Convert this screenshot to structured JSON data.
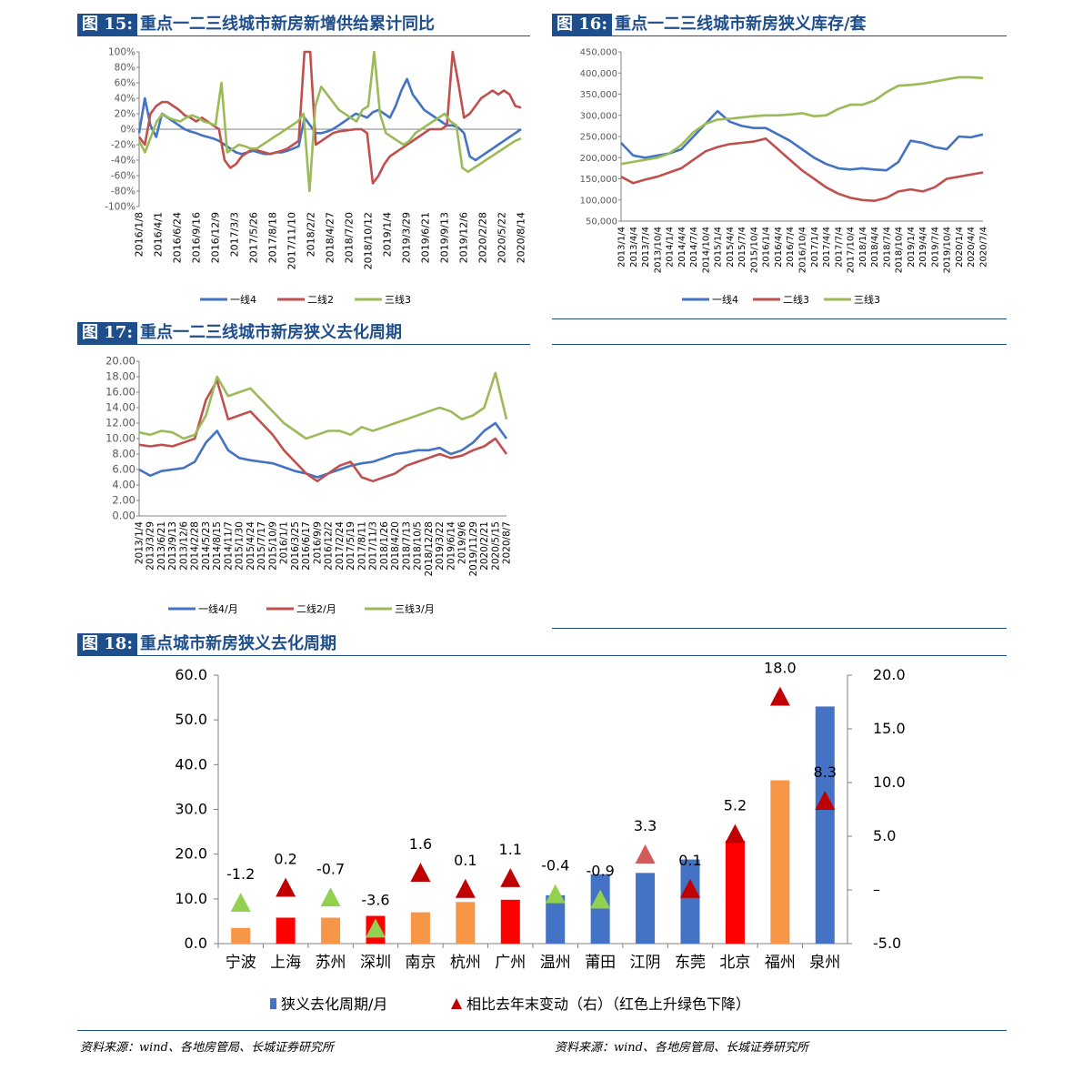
{
  "figures": {
    "f15": {
      "num": "图 15:",
      "title": "重点一二三线城市新房新增供给累计同比"
    },
    "f16": {
      "num": "图 16:",
      "title": "重点一二三线城市新房狭义库存/套"
    },
    "f17": {
      "num": "图 17:",
      "title": "重点一二三线城市新房狭义去化周期"
    },
    "f18": {
      "num": "图 18:",
      "title": "重点城市新房狭义去化周期"
    }
  },
  "sources": {
    "left": "资料来源：wind、各地房管局、长城证券研究所",
    "right": "资料来源：wind、各地房管局、长城证券研究所"
  },
  "colors": {
    "blue": "#4472c4",
    "red": "#c0504d",
    "green": "#9bbb59",
    "orange": "#f79646",
    "brightRed": "#ff0000",
    "navy": "#1f4e8c",
    "triRed": "#c00000",
    "triGreen": "#92d050"
  },
  "chart_data": [
    {
      "id": "f15",
      "type": "line",
      "title": "重点一二三线城市新房新增供给累计同比",
      "ylim": [
        -100,
        100
      ],
      "yticks": [
        "100%",
        "80%",
        "60%",
        "40%",
        "20%",
        "0%",
        "-20%",
        "-40%",
        "-60%",
        "-80%",
        "-100%"
      ],
      "x_labels": [
        "2016/1/8",
        "2016/4/1",
        "2016/6/24",
        "2016/9/16",
        "2016/12/9",
        "2017/3/3",
        "2017/5/26",
        "2017/8/18",
        "2017/11/10",
        "2018/2/2",
        "2018/4/27",
        "2018/7/20",
        "2018/10/12",
        "2019/1/4",
        "2019/3/29",
        "2019/6/21",
        "2019/9/13",
        "2019/12/6",
        "2020/2/28",
        "2020/5/22",
        "2020/8/14"
      ],
      "series": [
        {
          "name": "一线4",
          "color": "#4472c4",
          "values": [
            -5,
            40,
            5,
            -10,
            20,
            15,
            10,
            5,
            0,
            -3,
            -5,
            -8,
            -10,
            -12,
            -15,
            -20,
            -25,
            -30,
            -32,
            -30,
            -28,
            -30,
            -32,
            -32,
            -30,
            -30,
            -28,
            -25,
            -22,
            15,
            5,
            -5,
            -5,
            -3,
            0,
            5,
            10,
            15,
            20,
            18,
            15,
            22,
            25,
            20,
            15,
            30,
            50,
            65,
            45,
            35,
            25,
            20,
            15,
            10,
            5,
            5,
            2,
            -5,
            -35,
            -40,
            -35,
            -30,
            -25,
            -20,
            -15,
            -10,
            -5,
            0
          ]
        },
        {
          "name": "二线2",
          "color": "#c0504d",
          "values": [
            -10,
            -20,
            20,
            30,
            35,
            35,
            30,
            25,
            18,
            15,
            10,
            15,
            10,
            5,
            0,
            -40,
            -50,
            -45,
            -35,
            -30,
            -25,
            -28,
            -30,
            -32,
            -30,
            -28,
            -25,
            -20,
            -15,
            100,
            100,
            -20,
            -15,
            -10,
            -5,
            -3,
            -2,
            -1,
            0,
            0,
            -5,
            -70,
            -60,
            -45,
            -35,
            -30,
            -25,
            -20,
            -15,
            -10,
            -5,
            0,
            0,
            0,
            5,
            100,
            60,
            15,
            20,
            30,
            40,
            45,
            50,
            45,
            50,
            45,
            30,
            28
          ]
        },
        {
          "name": "三线3",
          "color": "#9bbb59",
          "values": [
            -15,
            -30,
            -10,
            10,
            20,
            15,
            12,
            10,
            15,
            18,
            15,
            10,
            8,
            5,
            60,
            -30,
            -25,
            -20,
            -22,
            -25,
            -25,
            -20,
            -15,
            -10,
            -5,
            0,
            5,
            10,
            20,
            -80,
            30,
            55,
            45,
            35,
            25,
            20,
            15,
            10,
            25,
            30,
            100,
            20,
            -5,
            -10,
            -15,
            -20,
            -15,
            -5,
            0,
            5,
            10,
            15,
            20,
            10,
            5,
            -50,
            -55,
            -50,
            -45,
            -40,
            -35,
            -30,
            -25,
            -20,
            -15,
            -12
          ]
        }
      ]
    },
    {
      "id": "f16",
      "type": "line",
      "title": "重点一二三线城市新房狭义库存/套",
      "ylim": [
        50000,
        450000
      ],
      "yticks": [
        "450,000",
        "400,000",
        "350,000",
        "300,000",
        "250,000",
        "200,000",
        "150,000",
        "100,000",
        "50,000"
      ],
      "x_labels": [
        "2013/1/4",
        "2013/4/4",
        "2013/7/4",
        "2013/10/4",
        "2014/1/4",
        "2014/4/4",
        "2014/7/4",
        "2014/10/4",
        "2015/1/4",
        "2015/4/4",
        "2015/7/4",
        "2015/10/4",
        "2016/1/4",
        "2016/4/4",
        "2016/7/4",
        "2016/10/4",
        "2017/1/4",
        "2017/4/4",
        "2017/7/4",
        "2017/10/4",
        "2018/1/4",
        "2018/4/4",
        "2018/7/4",
        "2018/10/4",
        "2019/1/4",
        "2019/4/4",
        "2019/7/4",
        "2019/10/4",
        "2020/1/4",
        "2020/4/4",
        "2020/7/4"
      ],
      "series": [
        {
          "name": "一线4",
          "color": "#4472c4",
          "values": [
            235000,
            205000,
            200000,
            205000,
            210000,
            220000,
            250000,
            280000,
            310000,
            285000,
            275000,
            270000,
            270000,
            255000,
            240000,
            220000,
            200000,
            185000,
            175000,
            172000,
            175000,
            172000,
            170000,
            190000,
            240000,
            235000,
            225000,
            220000,
            250000,
            248000,
            255000
          ]
        },
        {
          "name": "二线3",
          "color": "#c0504d",
          "values": [
            155000,
            140000,
            148000,
            155000,
            165000,
            175000,
            195000,
            215000,
            225000,
            232000,
            235000,
            238000,
            245000,
            220000,
            195000,
            170000,
            150000,
            130000,
            115000,
            105000,
            100000,
            98000,
            105000,
            120000,
            125000,
            120000,
            130000,
            150000,
            155000,
            160000,
            165000
          ]
        },
        {
          "name": "三线3",
          "color": "#9bbb59",
          "values": [
            185000,
            190000,
            195000,
            200000,
            210000,
            230000,
            260000,
            280000,
            290000,
            292000,
            295000,
            298000,
            300000,
            300000,
            302000,
            305000,
            298000,
            300000,
            315000,
            325000,
            325000,
            335000,
            355000,
            370000,
            372000,
            375000,
            380000,
            385000,
            390000,
            390000,
            388000
          ]
        }
      ]
    },
    {
      "id": "f17",
      "type": "line",
      "title": "重点一二三线城市新房狭义去化周期",
      "ylim": [
        0,
        20
      ],
      "yticks": [
        "20.00",
        "18.00",
        "16.00",
        "14.00",
        "12.00",
        "10.00",
        "8.00",
        "6.00",
        "4.00",
        "2.00",
        "0.00"
      ],
      "x_labels": [
        "2013/1/4",
        "2013/3/29",
        "2013/6/21",
        "2013/9/13",
        "2013/12/6",
        "2014/2/28",
        "2014/5/23",
        "2014/8/15",
        "2014/11/7",
        "2015/1/30",
        "2015/4/24",
        "2015/7/17",
        "2015/10/9",
        "2016/1/1",
        "2016/3/25",
        "2016/6/17",
        "2016/9/9",
        "2016/12/2",
        "2017/2/24",
        "2017/5/19",
        "2017/8/11",
        "2017/11/3",
        "2018/1/26",
        "2018/4/20",
        "2018/7/13",
        "2018/10/5",
        "2018/12/28",
        "2019/3/22",
        "2019/6/14",
        "2019/9/6",
        "2019/11/29",
        "2020/2/21",
        "2020/5/15",
        "2020/8/7"
      ],
      "series": [
        {
          "name": "一线4/月",
          "color": "#4472c4",
          "values": [
            6.0,
            5.2,
            5.8,
            6.0,
            6.2,
            7.0,
            9.5,
            11.0,
            8.5,
            7.5,
            7.2,
            7.0,
            6.8,
            6.3,
            5.8,
            5.5,
            5.0,
            5.5,
            6.0,
            6.5,
            6.8,
            7.0,
            7.5,
            8.0,
            8.2,
            8.5,
            8.5,
            8.8,
            8.0,
            8.5,
            9.5,
            11.0,
            12.0,
            10.0
          ]
        },
        {
          "name": "二线2/月",
          "color": "#c0504d",
          "values": [
            9.2,
            9.0,
            9.2,
            9.0,
            9.5,
            10.0,
            15.0,
            17.5,
            12.5,
            13.0,
            13.5,
            12.0,
            10.5,
            8.5,
            7.0,
            5.5,
            4.5,
            5.5,
            6.5,
            7.0,
            5.0,
            4.5,
            5.0,
            5.5,
            6.5,
            7.0,
            7.5,
            8.0,
            7.5,
            7.8,
            8.5,
            9.0,
            10.0,
            8.0
          ]
        },
        {
          "name": "三线3/月",
          "color": "#9bbb59",
          "values": [
            10.8,
            10.5,
            11.0,
            10.8,
            10.0,
            10.5,
            13.0,
            18.0,
            15.5,
            16.0,
            16.5,
            15.0,
            13.5,
            12.0,
            11.0,
            10.0,
            10.5,
            11.0,
            11.0,
            10.5,
            11.5,
            11.0,
            11.5,
            12.0,
            12.5,
            13.0,
            13.5,
            14.0,
            13.5,
            12.5,
            13.0,
            14.0,
            18.5,
            12.5
          ]
        }
      ]
    },
    {
      "id": "f18",
      "type": "bar",
      "title": "重点城市新房狭义去化周期",
      "categories": [
        "宁波",
        "上海",
        "苏州",
        "深圳",
        "南京",
        "杭州",
        "广州",
        "温州",
        "莆田",
        "江阴",
        "东莞",
        "北京",
        "福州",
        "泉州"
      ],
      "bar_values": [
        3.5,
        5.8,
        5.8,
        6.2,
        7.0,
        9.3,
        9.8,
        10.8,
        15.5,
        15.8,
        18.8,
        23.0,
        36.5,
        53.0
      ],
      "bar_colors": [
        "orange",
        "brightRed",
        "orange",
        "brightRed",
        "orange",
        "orange",
        "brightRed",
        "blue",
        "blue",
        "blue",
        "blue",
        "brightRed",
        "orange",
        "blue"
      ],
      "change_values": [
        -1.2,
        0.2,
        -0.7,
        -3.6,
        1.6,
        0.1,
        1.1,
        -0.4,
        -0.9,
        3.3,
        0.1,
        5.2,
        18.0,
        8.3
      ],
      "change_labels": [
        "-1.2",
        "0.2",
        "-0.7",
        "-3.6",
        "1.6",
        "0.1",
        "1.1",
        "-0.4",
        "-0.9",
        "3.3",
        "0.1",
        "5.2",
        "18.0",
        "8.3"
      ],
      "change_colors": [
        "triGreen",
        "triRed",
        "triGreen",
        "triGreen",
        "triRed",
        "triRed",
        "triRed",
        "triGreen",
        "triGreen",
        "triRedLight",
        "triRed",
        "triRed",
        "triRed",
        "triRed"
      ],
      "ylim_left": [
        0,
        60
      ],
      "yticks_left": [
        "60.0",
        "50.0",
        "40.0",
        "30.0",
        "20.0",
        "10.0",
        "0.0"
      ],
      "ylim_right": [
        -5,
        20
      ],
      "yticks_right": [
        "20.0",
        "15.0",
        "10.0",
        "5.0",
        "–",
        "-5.0"
      ],
      "legend": {
        "bar": "狭义去化周期/月",
        "marker": "相比去年末变动（右）（红色上升绿色下降）"
      }
    }
  ]
}
